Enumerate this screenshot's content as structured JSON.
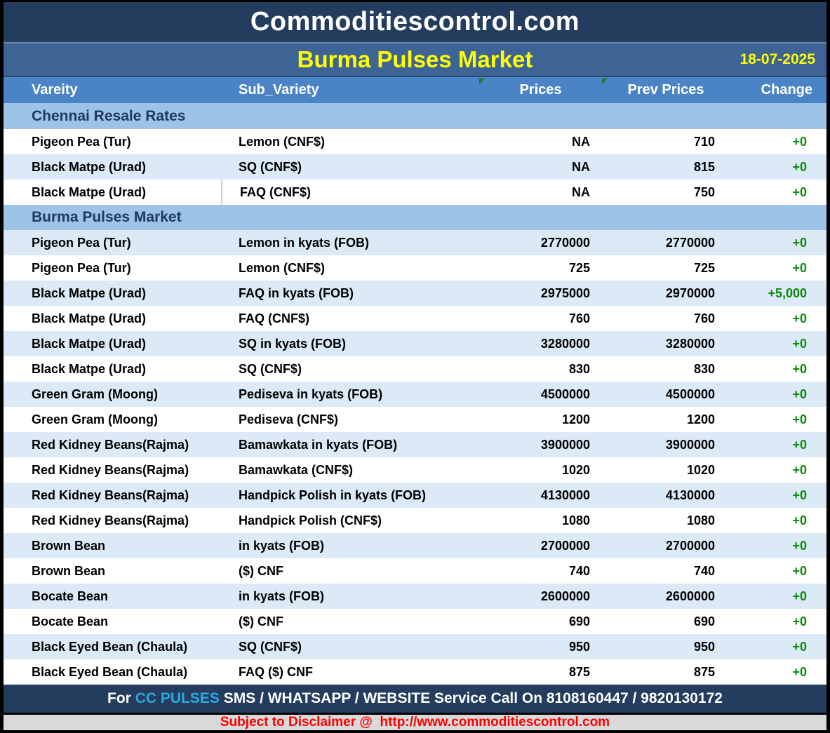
{
  "header": {
    "site_title": "Commoditiescontrol.com",
    "report_title": "Burma Pulses Market",
    "date": "18-07-2025"
  },
  "table": {
    "columns": [
      "Vareity",
      "Sub_Variety",
      "Prices",
      "Prev Prices",
      "Change"
    ],
    "sections": [
      {
        "title": "Chennai Resale Rates",
        "rows": [
          {
            "variety": "Pigeon Pea (Tur)",
            "sub_variety": "Lemon (CNF$)",
            "price": "NA",
            "prev_price": "710",
            "change": "+0"
          },
          {
            "variety": "Black Matpe (Urad)",
            "sub_variety": "SQ (CNF$)",
            "price": "NA",
            "prev_price": "815",
            "change": "+0"
          },
          {
            "variety": "Black Matpe (Urad)",
            "sub_variety": "FAQ (CNF$)",
            "price": "NA",
            "prev_price": "750",
            "change": "+0",
            "cell_border": true
          }
        ]
      },
      {
        "title": "Burma Pulses Market",
        "rows": [
          {
            "variety": "Pigeon Pea (Tur)",
            "sub_variety": "Lemon in kyats (FOB)",
            "price": "2770000",
            "prev_price": "2770000",
            "change": "+0"
          },
          {
            "variety": "Pigeon Pea (Tur)",
            "sub_variety": "Lemon (CNF$)",
            "price": "725",
            "prev_price": "725",
            "change": "+0"
          },
          {
            "variety": "Black Matpe (Urad)",
            "sub_variety": "FAQ in kyats (FOB)",
            "price": "2975000",
            "prev_price": "2970000",
            "change": "+5,000"
          },
          {
            "variety": "Black Matpe (Urad)",
            "sub_variety": "FAQ (CNF$)",
            "price": "760",
            "prev_price": "760",
            "change": "+0"
          },
          {
            "variety": "Black Matpe (Urad)",
            "sub_variety": "SQ in kyats (FOB)",
            "price": "3280000",
            "prev_price": "3280000",
            "change": "+0"
          },
          {
            "variety": "Black Matpe (Urad)",
            "sub_variety": "SQ (CNF$)",
            "price": "830",
            "prev_price": "830",
            "change": "+0"
          },
          {
            "variety": "Green Gram (Moong)",
            "sub_variety": "Pediseva in kyats (FOB)",
            "price": "4500000",
            "prev_price": "4500000",
            "change": "+0"
          },
          {
            "variety": "Green Gram (Moong)",
            "sub_variety": "Pediseva (CNF$)",
            "price": "1200",
            "prev_price": "1200",
            "change": "+0"
          },
          {
            "variety": "Red Kidney Beans(Rajma)",
            "sub_variety": "Bamawkata in kyats (FOB)",
            "price": "3900000",
            "prev_price": "3900000",
            "change": "+0"
          },
          {
            "variety": "Red Kidney Beans(Rajma)",
            "sub_variety": "Bamawkata (CNF$)",
            "price": "1020",
            "prev_price": "1020",
            "change": "+0"
          },
          {
            "variety": "Red Kidney Beans(Rajma)",
            "sub_variety": "Handpick Polish in kyats (FOB)",
            "price": "4130000",
            "prev_price": "4130000",
            "change": "+0"
          },
          {
            "variety": "Red Kidney Beans(Rajma)",
            "sub_variety": "Handpick Polish (CNF$)",
            "price": "1080",
            "prev_price": "1080",
            "change": "+0"
          },
          {
            "variety": "Brown Bean",
            "sub_variety": "in kyats (FOB)",
            "price": "2700000",
            "prev_price": "2700000",
            "change": "+0"
          },
          {
            "variety": "Brown Bean",
            "sub_variety": "($) CNF",
            "price": "740",
            "prev_price": "740",
            "change": "+0"
          },
          {
            "variety": "Bocate Bean",
            "sub_variety": "in kyats (FOB)",
            "price": "2600000",
            "prev_price": "2600000",
            "change": "+0"
          },
          {
            "variety": "Bocate Bean",
            "sub_variety": "($) CNF",
            "price": "690",
            "prev_price": "690",
            "change": "+0"
          },
          {
            "variety": "Black Eyed Bean (Chaula)",
            "sub_variety": "SQ (CNF$)",
            "price": "950",
            "prev_price": "950",
            "change": "+0"
          },
          {
            "variety": "Black Eyed Bean (Chaula)",
            "sub_variety": "FAQ ($) CNF",
            "price": "875",
            "prev_price": "875",
            "change": "+0"
          }
        ]
      }
    ]
  },
  "footer": {
    "service_prefix": "For ",
    "service_brand": "CC PULSES",
    "service_rest": " SMS / WHATSAPP / WEBSITE Service Call On 8108160447 / 9820130172",
    "disclaimer": "Subject to Disclaimer @  http://www.commoditiescontrol.com"
  },
  "icons": {
    "comment_marker": "green-corner-triangle"
  },
  "colors": {
    "navy_bar": "#243C5E",
    "subtitle_bar": "#3D6494",
    "column_header": "#4B83C7",
    "section_band": "#9DC3E6",
    "alt_row": "#DCE9F6",
    "change_green": "#0B8A0B",
    "title_yellow": "#FFFF00",
    "brand_cyan": "#29ABE2",
    "disclaimer_red": "#FF0000",
    "disclaimer_bar": "#D9D9D9"
  }
}
